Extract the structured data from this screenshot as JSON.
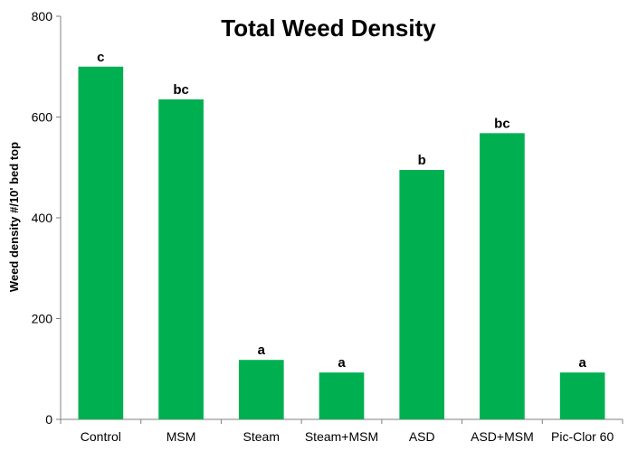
{
  "chart_data": {
    "type": "bar",
    "title": "Total Weed Density",
    "xlabel": "",
    "ylabel": "Weed density #/10' bed top",
    "categories": [
      "Control",
      "MSM",
      "Steam",
      "Steam+MSM",
      "ASD",
      "ASD+MSM",
      "Pic-Clor 60"
    ],
    "values": [
      700,
      635,
      118,
      93,
      495,
      568,
      93
    ],
    "data_labels": [
      "c",
      "bc",
      "a",
      "a",
      "b",
      "bc",
      "a"
    ],
    "ylim": [
      0,
      800
    ],
    "yticks": [
      0,
      200,
      400,
      600,
      800
    ],
    "grid": false,
    "legend": "none",
    "bar_color": "#00b050"
  }
}
